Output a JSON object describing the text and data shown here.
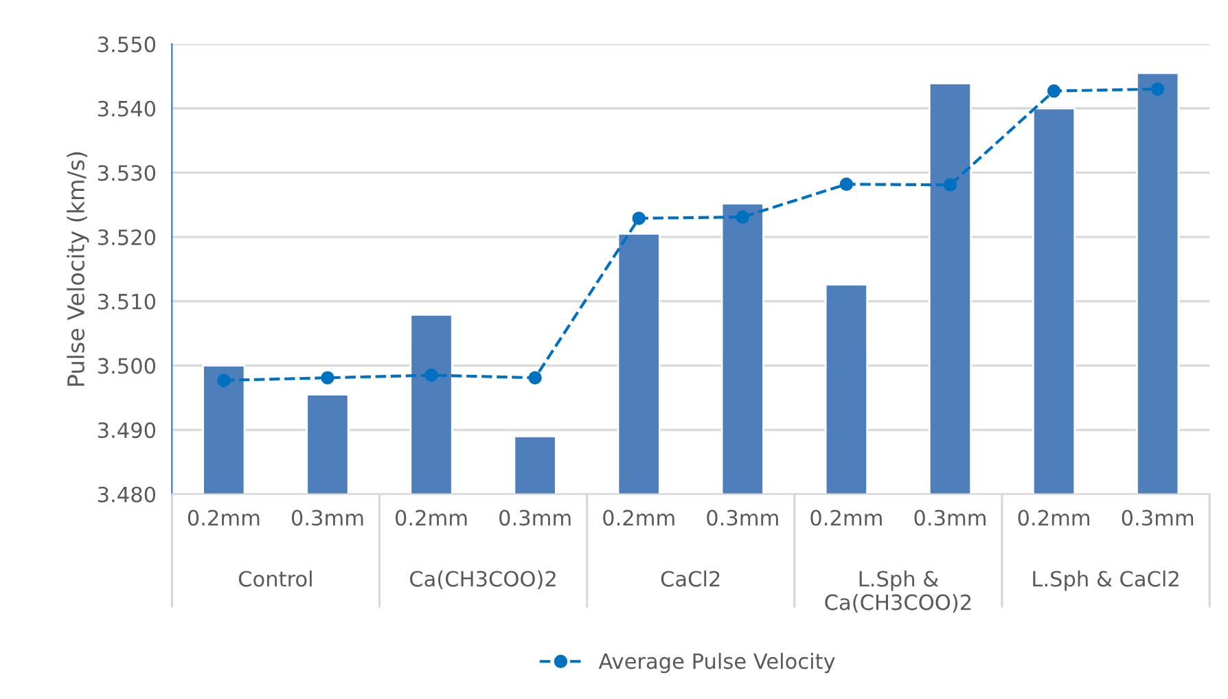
{
  "chart_data": {
    "type": "bar",
    "ylabel": "Pulse Velocity (km/s)",
    "categories": [
      "0.2mm",
      "0.3mm",
      "0.2mm",
      "0.3mm",
      "0.2mm",
      "0.3mm",
      "0.2mm",
      "0.3mm",
      "0.2mm",
      "0.3mm"
    ],
    "annotations": [
      "Control",
      "Ca(CH3COO)2",
      "CaCl2",
      "L.Sph & Ca(CH3COO)2",
      "L.Sph & CaCl2"
    ],
    "series": [
      {
        "color": "#4e7fba",
        "values": [
          3.5,
          3.4955,
          3.5079,
          3.489,
          3.5205,
          3.5252,
          3.5126,
          3.5439,
          3.54,
          3.5455
        ]
      },
      {
        "type": "line",
        "name": "Average Pulse Velocity",
        "color": "#0070c0",
        "marker": "circle",
        "line_style": "dashed",
        "values": [
          3.4977,
          3.4981,
          3.4985,
          3.4981,
          3.5229,
          3.5231,
          3.5282,
          3.5281,
          3.5427,
          3.543
        ]
      }
    ],
    "ylim": [
      3.48,
      3.55
    ],
    "yticks": [
      {
        "value": 3.48,
        "label": "3.480"
      },
      {
        "value": 3.49,
        "label": "3.490"
      },
      {
        "value": 3.5,
        "label": "3.500"
      },
      {
        "value": 3.51,
        "label": "3.510"
      },
      {
        "value": 3.52,
        "label": "3.520"
      },
      {
        "value": 3.53,
        "label": "3.530"
      },
      {
        "value": 3.54,
        "label": "3.540"
      },
      {
        "value": 3.55,
        "label": "3.550"
      }
    ],
    "grid": "y",
    "legend": "bottom"
  }
}
